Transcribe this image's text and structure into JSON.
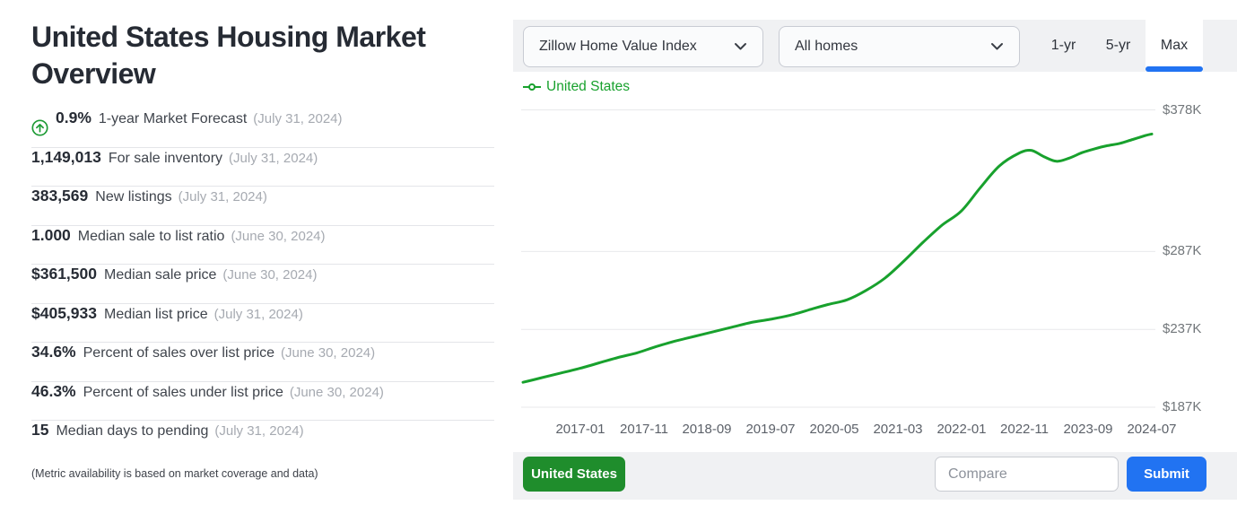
{
  "left_panel": {
    "title": "United States Housing Market Overview",
    "metrics": [
      {
        "value": "0.9%",
        "label": "1-year Market Forecast",
        "date": "(July 31, 2024)",
        "icon": "up-arrow-circle"
      },
      {
        "value": "1,149,013",
        "label": "For sale inventory",
        "date": "(July 31, 2024)"
      },
      {
        "value": "383,569",
        "label": "New listings",
        "date": "(July 31, 2024)"
      },
      {
        "value": "1.000",
        "label": "Median sale to list ratio",
        "date": "(June 30, 2024)"
      },
      {
        "value": "$361,500",
        "label": "Median sale price",
        "date": "(June 30, 2024)"
      },
      {
        "value": "$405,933",
        "label": "Median list price",
        "date": "(July 31, 2024)"
      },
      {
        "value": "34.6%",
        "label": "Percent of sales over list price",
        "date": "(June 30, 2024)"
      },
      {
        "value": "46.3%",
        "label": "Percent of sales under list price",
        "date": "(June 30, 2024)"
      },
      {
        "value": "15",
        "label": "Median days to pending",
        "date": "(July 31, 2024)"
      }
    ],
    "footnote": "(Metric availability is based on market coverage and data)"
  },
  "toolbar": {
    "metric_dropdown": {
      "value": "Zillow Home Value Index"
    },
    "home_type_dropdown": {
      "value": "All homes"
    },
    "range_tabs": [
      {
        "label": "1-yr",
        "active": false
      },
      {
        "label": "5-yr",
        "active": false
      },
      {
        "label": "Max",
        "active": true
      }
    ]
  },
  "chart_data": {
    "type": "line",
    "title": "",
    "xlabel": "",
    "ylabel": "",
    "grid": "horizontal",
    "legend_position": "top-left",
    "x_unit": "months since 2016-04",
    "xlim": [
      0,
      99
    ],
    "ylim": [
      182.4,
      384.05
    ],
    "y_ticks": [
      {
        "label": "$378K",
        "value": 378
      },
      {
        "label": "$287K",
        "value": 287
      },
      {
        "label": "$237K",
        "value": 237
      },
      {
        "label": "$187K",
        "value": 187
      }
    ],
    "x_ticks": [
      {
        "label": "2017-01",
        "m": 9
      },
      {
        "label": "2017-11",
        "m": 19
      },
      {
        "label": "2018-09",
        "m": 29
      },
      {
        "label": "2019-07",
        "m": 39
      },
      {
        "label": "2020-05",
        "m": 49
      },
      {
        "label": "2021-03",
        "m": 59
      },
      {
        "label": "2022-01",
        "m": 69
      },
      {
        "label": "2022-11",
        "m": 79
      },
      {
        "label": "2023-09",
        "m": 89
      },
      {
        "label": "2024-07",
        "m": 99
      }
    ],
    "value_unit": "USD thousands (Zillow Home Value Index)",
    "series": [
      {
        "name": "United States",
        "color": "#18a12d",
        "points": [
          [
            0,
            203
          ],
          [
            3,
            206
          ],
          [
            6,
            209
          ],
          [
            9,
            212
          ],
          [
            12,
            215.5
          ],
          [
            15,
            219
          ],
          [
            18,
            222
          ],
          [
            21,
            226
          ],
          [
            24,
            229.5
          ],
          [
            27,
            232.5
          ],
          [
            30,
            235.5
          ],
          [
            33,
            238.5
          ],
          [
            36,
            241.5
          ],
          [
            39,
            243.5
          ],
          [
            42,
            246
          ],
          [
            45,
            249.5
          ],
          [
            48,
            253
          ],
          [
            51,
            256
          ],
          [
            54,
            262
          ],
          [
            57,
            270
          ],
          [
            60,
            281
          ],
          [
            63,
            293
          ],
          [
            66,
            304
          ],
          [
            69,
            313
          ],
          [
            72,
            328
          ],
          [
            75,
            342
          ],
          [
            78,
            350
          ],
          [
            80,
            352
          ],
          [
            82,
            348
          ],
          [
            84,
            345
          ],
          [
            86,
            347
          ],
          [
            88,
            350.5
          ],
          [
            90,
            353
          ],
          [
            92,
            355
          ],
          [
            94,
            356.5
          ],
          [
            96,
            359
          ],
          [
            98,
            361.5
          ],
          [
            99,
            362.5
          ]
        ]
      }
    ]
  },
  "footer": {
    "region_button": "United States",
    "compare_placeholder": "Compare",
    "submit_label": "Submit"
  },
  "colors": {
    "line_green": "#18a12d",
    "button_green": "#1f8d2c",
    "accent_blue": "#2173f2",
    "toolbar_gray": "#f0f1f3",
    "gridline": "#e8e9eb"
  }
}
